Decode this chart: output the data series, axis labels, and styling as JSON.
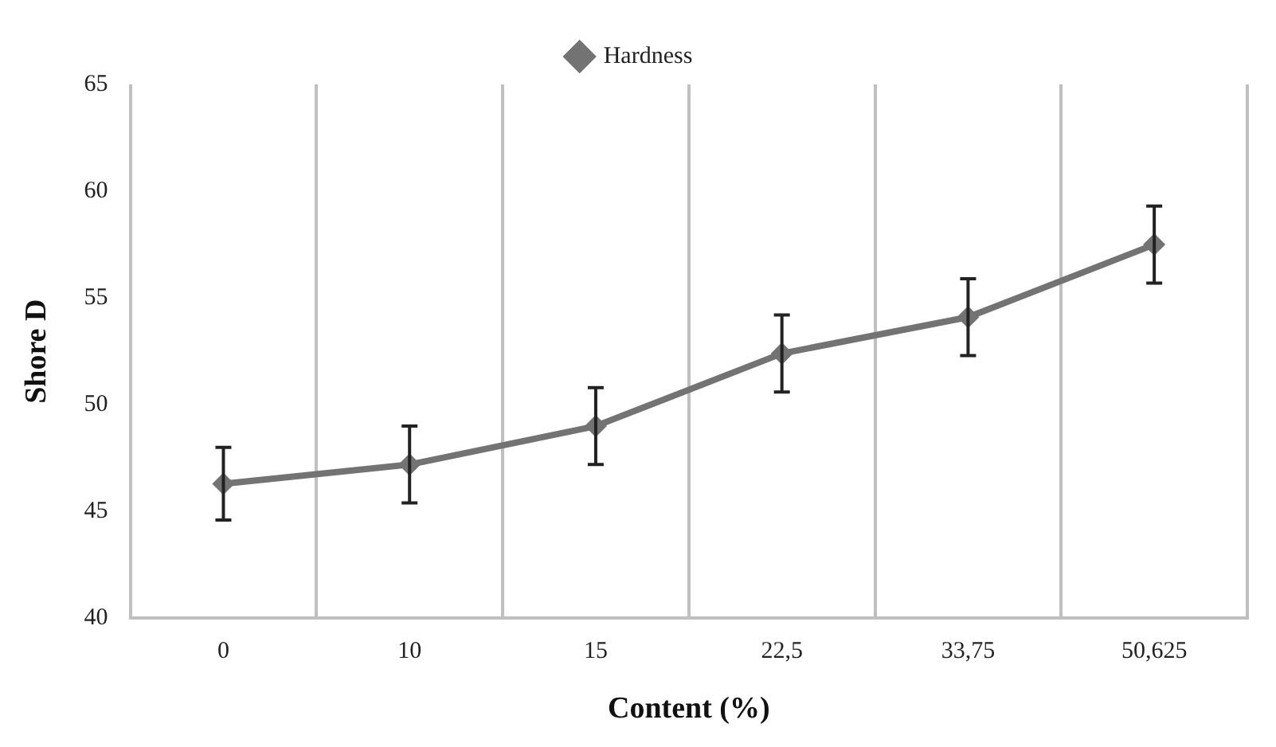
{
  "chart_data": {
    "type": "line",
    "xlabel": "Content (%)",
    "ylabel": "Shore D",
    "categories": [
      "0",
      "10",
      "15",
      "22,5",
      "33,75",
      "50,625"
    ],
    "series": [
      {
        "name": "Hardness",
        "color": "#737373",
        "values": [
          46.3,
          47.2,
          49.0,
          52.4,
          54.1,
          57.5
        ],
        "errors": [
          1.7,
          1.8,
          1.8,
          1.8,
          1.8,
          1.8
        ]
      }
    ],
    "ylim": [
      40,
      65
    ],
    "yticks": [
      40,
      45,
      50,
      55,
      60,
      65
    ],
    "grid": "x",
    "legend": "top",
    "marker": "diamond",
    "line_style": "solid"
  }
}
